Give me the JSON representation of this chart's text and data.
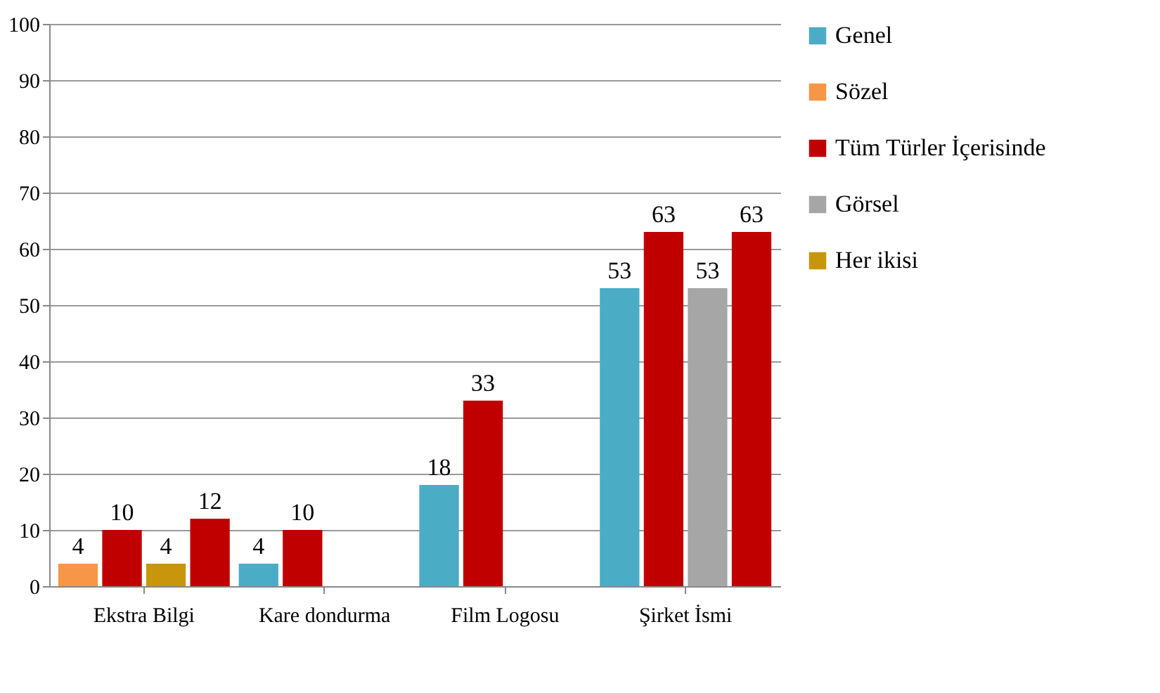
{
  "chart_data": {
    "type": "bar",
    "categories": [
      "Ekstra Bilgi",
      "Kare dondurma",
      "Film Logosu",
      "Şirket İsmi"
    ],
    "series": [
      {
        "name": "Genel",
        "color": "#4bacc6",
        "values": [
          null,
          4,
          18,
          53
        ]
      },
      {
        "name": "Sözel",
        "color": "#f79646",
        "values": [
          4,
          null,
          null,
          null
        ]
      },
      {
        "name": "Tüm Türler İçerisinde",
        "color": "#c00000",
        "values": [
          10,
          10,
          33,
          63
        ]
      },
      {
        "name": "Görsel",
        "color": "#a6a6a6",
        "values": [
          null,
          null,
          null,
          53
        ]
      },
      {
        "name": "Her ikisi",
        "color": "#c8960a",
        "values": [
          4,
          null,
          null,
          null
        ]
      },
      {
        "color": "#c00000",
        "values": [
          12,
          null,
          null,
          63
        ]
      }
    ],
    "ylim": [
      0,
      100
    ],
    "yticks": [
      0,
      10,
      20,
      30,
      40,
      50,
      60,
      70,
      80,
      90,
      100
    ],
    "grid": "y",
    "legend": "right",
    "data_labels": true
  }
}
